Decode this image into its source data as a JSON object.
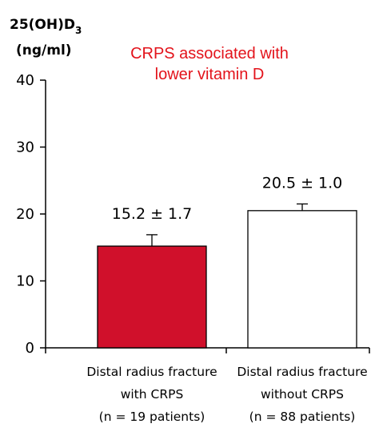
{
  "chart_data": {
    "type": "bar",
    "ylabel": {
      "line1": "25(OH)D",
      "subscript": "3",
      "line2": "(ng/ml)"
    },
    "annotation": [
      "CRPS associated with",
      "lower vitamin D"
    ],
    "ylim": [
      0,
      40
    ],
    "yticks": [
      0,
      10,
      20,
      30,
      40
    ],
    "categories": [
      {
        "lines": [
          "Distal radius fracture",
          "with CRPS",
          "(n = 19 patients)"
        ],
        "value": 15.2,
        "error": 1.7,
        "value_label": "15.2 ± 1.7",
        "fill": "#d0102b"
      },
      {
        "lines": [
          "Distal radius fracture",
          "without CRPS",
          "(n = 88 patients)"
        ],
        "value": 20.5,
        "error": 1.0,
        "value_label": "20.5 ± 1.0",
        "fill": "#ffffff"
      }
    ],
    "grid": false,
    "colors": {
      "annotation": "#e3131b",
      "axis": "#000000"
    }
  }
}
